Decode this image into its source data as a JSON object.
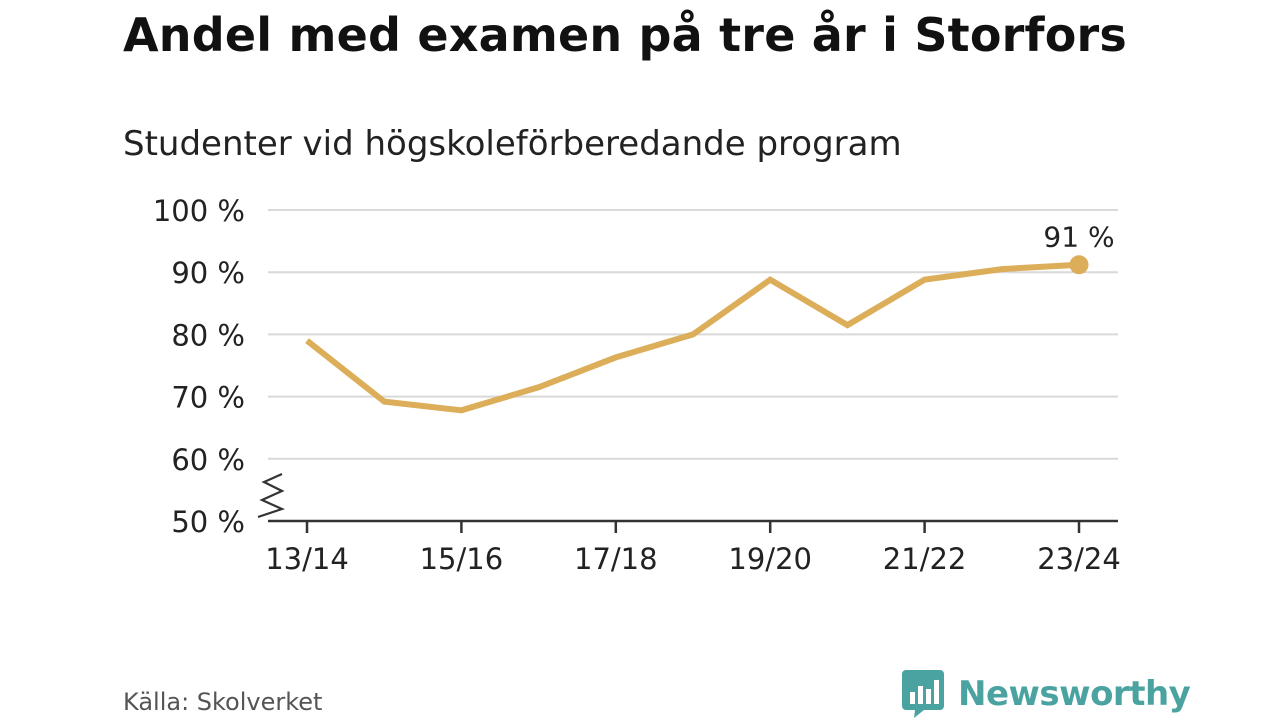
{
  "title": "Andel med examen på tre år i Storfors",
  "subtitle": "Studenter vid högskoleförberedande program",
  "source": "Källa: Skolverket",
  "brand": {
    "name": "Newsworthy",
    "icon": "newsworthy-logo-icon"
  },
  "colors": {
    "line": "#dcae5a",
    "grid": "#d9d9d9",
    "axis": "#333333",
    "text": "#222222",
    "brand": "#4aa3a0"
  },
  "chart_data": {
    "type": "line",
    "title": "Andel med examen på tre år i Storfors",
    "subtitle": "Studenter vid högskoleförberedande program",
    "xlabel": "",
    "ylabel": "",
    "categories": [
      "13/14",
      "14/15",
      "15/16",
      "16/17",
      "17/18",
      "18/19",
      "19/20",
      "20/21",
      "21/22",
      "22/23",
      "23/24"
    ],
    "x_tick_labels": [
      "13/14",
      "15/16",
      "17/18",
      "19/20",
      "21/22",
      "23/24"
    ],
    "series": [
      {
        "values": [
          79,
          69.2,
          67.8,
          71.5,
          76.3,
          80,
          88.8,
          81.5,
          88.8,
          90.5,
          91.2
        ]
      }
    ],
    "ylim": [
      50,
      100
    ],
    "y_ticks": [
      50,
      60,
      70,
      80,
      90,
      100
    ],
    "y_tick_labels": [
      "50 %",
      "60 %",
      "70 %",
      "80 %",
      "90 %",
      "100 %"
    ],
    "y_axis_break": true,
    "grid": true,
    "end_label": "91 %"
  }
}
